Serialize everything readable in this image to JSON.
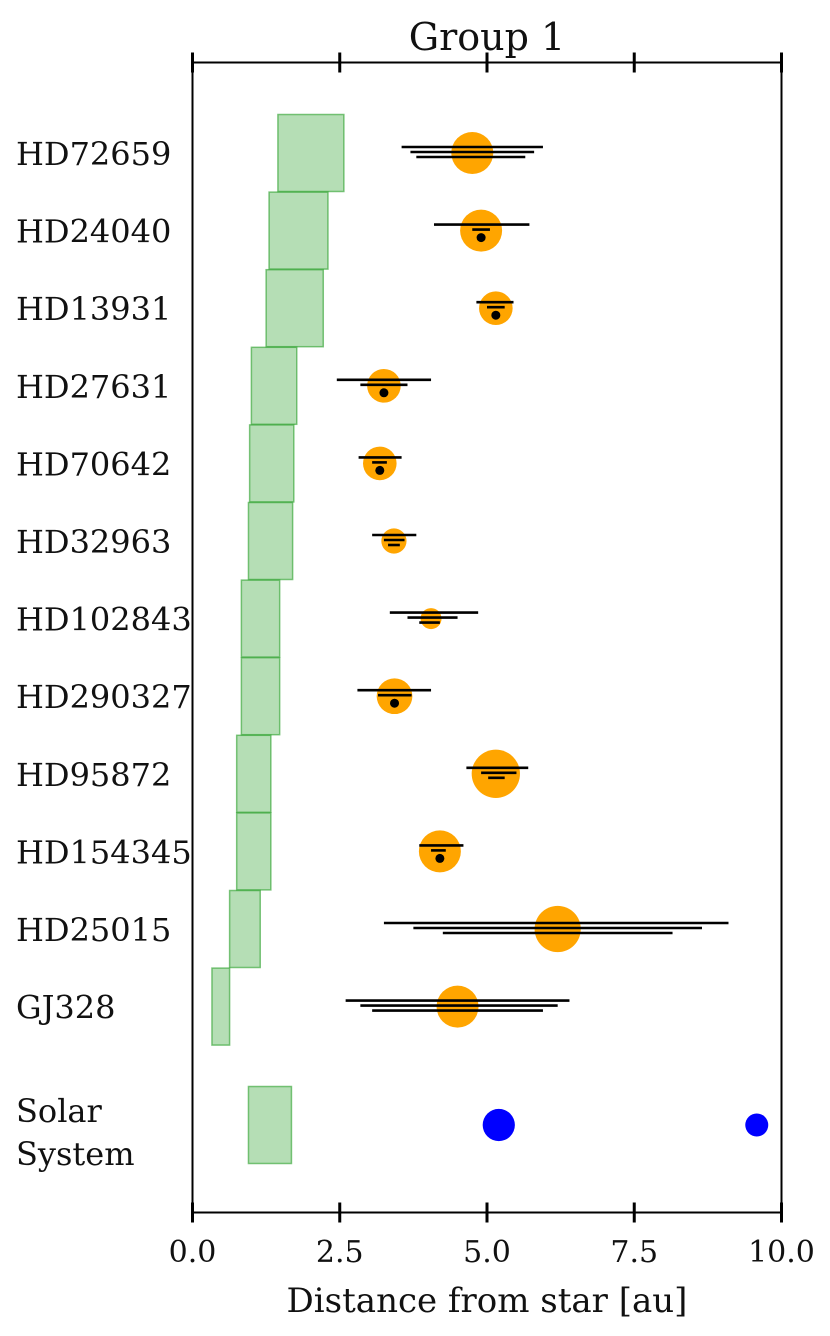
{
  "chart_data": {
    "type": "scatter",
    "title": "Group 1",
    "xlabel": "Distance from star [au]",
    "ylabel": "",
    "xlim": [
      0.0,
      10.0
    ],
    "xticks": [
      "0.0",
      "2.5",
      "5.0",
      "7.5",
      "10.0"
    ],
    "grid": false,
    "zone_color": "#2ca02c",
    "planet_color": "#ffa500",
    "solar_color": "#0000ff",
    "rows": [
      {
        "name": "HD72659",
        "zone": [
          1.45,
          2.57
        ],
        "planet": {
          "a": 4.75,
          "size": 1.0,
          "bars": [
            [
              3.55,
              5.95
            ],
            [
              3.7,
              5.8
            ],
            [
              3.8,
              5.65
            ]
          ],
          "dot": false
        }
      },
      {
        "name": "HD24040",
        "zone": [
          1.3,
          2.3
        ],
        "planet": {
          "a": 4.9,
          "size": 1.0,
          "bars": [
            [
              4.1,
              5.72
            ],
            [
              4.75,
              5.05
            ]
          ],
          "dot": true
        }
      },
      {
        "name": "HD13931",
        "zone": [
          1.25,
          2.22
        ],
        "planet": {
          "a": 5.15,
          "size": 0.8,
          "bars": [
            [
              4.82,
              5.45
            ],
            [
              5.0,
              5.3
            ]
          ],
          "dot": true
        }
      },
      {
        "name": "HD27631",
        "zone": [
          1.0,
          1.77
        ],
        "planet": {
          "a": 3.25,
          "size": 0.8,
          "bars": [
            [
              2.45,
              4.05
            ],
            [
              2.85,
              3.65
            ]
          ],
          "dot": true
        }
      },
      {
        "name": "HD70642",
        "zone": [
          0.97,
          1.72
        ],
        "planet": {
          "a": 3.18,
          "size": 0.8,
          "bars": [
            [
              2.82,
              3.55
            ],
            [
              3.05,
              3.3
            ]
          ],
          "dot": true
        }
      },
      {
        "name": "HD32963",
        "zone": [
          0.95,
          1.7
        ],
        "planet": {
          "a": 3.42,
          "size": 0.6,
          "bars": [
            [
              3.05,
              3.8
            ],
            [
              3.25,
              3.6
            ],
            [
              3.32,
              3.52
            ]
          ],
          "dot": false
        }
      },
      {
        "name": "HD102843",
        "zone": [
          0.83,
          1.48
        ],
        "planet": {
          "a": 4.05,
          "size": 0.5,
          "bars": [
            [
              3.35,
              4.85
            ],
            [
              3.65,
              4.5
            ],
            [
              3.85,
              4.2
            ]
          ],
          "dot": false
        }
      },
      {
        "name": "HD290327",
        "zone": [
          0.83,
          1.48
        ],
        "planet": {
          "a": 3.43,
          "size": 0.85,
          "bars": [
            [
              2.8,
              4.05
            ],
            [
              3.15,
              3.72
            ]
          ],
          "dot": true
        }
      },
      {
        "name": "HD95872",
        "zone": [
          0.75,
          1.33
        ],
        "planet": {
          "a": 5.15,
          "size": 1.15,
          "bars": [
            [
              4.65,
              5.7
            ],
            [
              4.9,
              5.5
            ],
            [
              5.02,
              5.3
            ]
          ],
          "dot": false
        }
      },
      {
        "name": "HD154345",
        "zone": [
          0.75,
          1.33
        ],
        "planet": {
          "a": 4.2,
          "size": 1.0,
          "bars": [
            [
              3.85,
              4.6
            ],
            [
              4.05,
              4.3
            ]
          ],
          "dot": true
        }
      },
      {
        "name": "HD25015",
        "zone": [
          0.63,
          1.15
        ],
        "planet": {
          "a": 6.2,
          "size": 1.1,
          "bars": [
            [
              3.25,
              9.1
            ],
            [
              3.75,
              8.65
            ],
            [
              4.25,
              8.15
            ]
          ],
          "dot": false
        }
      },
      {
        "name": "GJ328",
        "zone": [
          0.33,
          0.63
        ],
        "planet": {
          "a": 4.5,
          "size": 1.0,
          "bars": [
            [
              2.6,
              6.4
            ],
            [
              2.85,
              6.2
            ],
            [
              3.05,
              5.95
            ]
          ],
          "dot": false
        }
      }
    ],
    "solar_system": {
      "label_lines": [
        "Solar",
        "System"
      ],
      "zone": [
        0.95,
        1.68
      ],
      "planets": [
        {
          "a": 5.2,
          "size": 0.7
        },
        {
          "a": 9.58,
          "size": 0.5
        }
      ]
    }
  }
}
